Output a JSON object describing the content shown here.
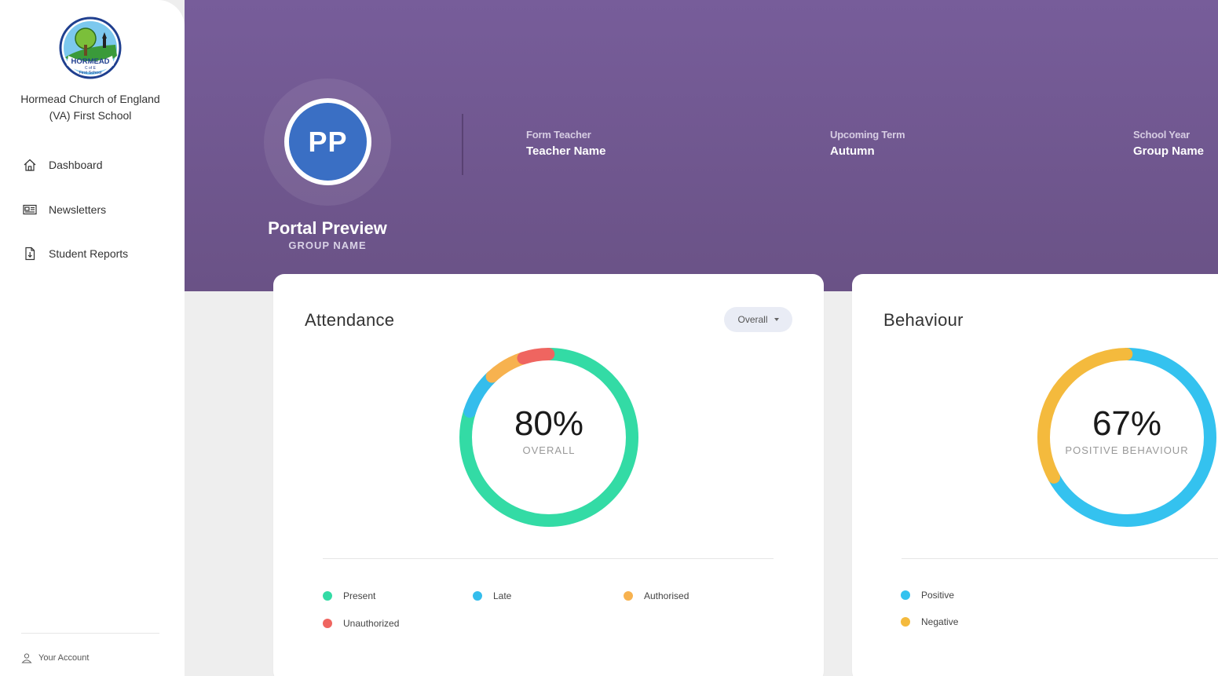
{
  "sidebar": {
    "school_name_line1": "Hormead Church of England",
    "school_name_line2": "(VA) First School",
    "logo_text_main": "HORMEAD",
    "logo_text_sub": "C of E",
    "logo_text_bottom": "First School",
    "nav": [
      {
        "label": "Dashboard",
        "icon": "home-icon"
      },
      {
        "label": "Newsletters",
        "icon": "newspaper-icon"
      },
      {
        "label": "Student Reports",
        "icon": "report-download-icon"
      }
    ],
    "account_label": "Your Account"
  },
  "header": {
    "initials": "PP",
    "name": "Portal Preview",
    "group": "GROUP NAME",
    "form_teacher_label": "Form Teacher",
    "form_teacher_value": "Teacher Name",
    "term_label": "Upcoming Term",
    "term_value": "Autumn",
    "year_label": "School Year",
    "year_value": "Group Name",
    "colors": {
      "bg": "#775d9a",
      "avatar": "#3a6fc4"
    }
  },
  "attendance": {
    "title": "Attendance",
    "dropdown_label": "Overall",
    "center_value": "80%",
    "center_label": "OVERALL",
    "legend": [
      "Present",
      "Late",
      "Authorised",
      "Unauthorized"
    ]
  },
  "behaviour": {
    "title": "Behaviour",
    "center_value": "67%",
    "center_label": "POSITIVE BEHAVIOUR",
    "legend": [
      "Positive",
      "Negative"
    ]
  },
  "chart_data": [
    {
      "type": "pie",
      "title": "Attendance",
      "categories": [
        "Present",
        "Late",
        "Authorised",
        "Unauthorized"
      ],
      "values": [
        80,
        8,
        7,
        5
      ],
      "colors": [
        "#33dba5",
        "#34bdec",
        "#f7b24f",
        "#ef6560"
      ]
    },
    {
      "type": "pie",
      "title": "Behaviour",
      "categories": [
        "Positive",
        "Negative"
      ],
      "values": [
        67,
        33
      ],
      "colors": [
        "#34c2ef",
        "#f4ba3d"
      ]
    }
  ]
}
